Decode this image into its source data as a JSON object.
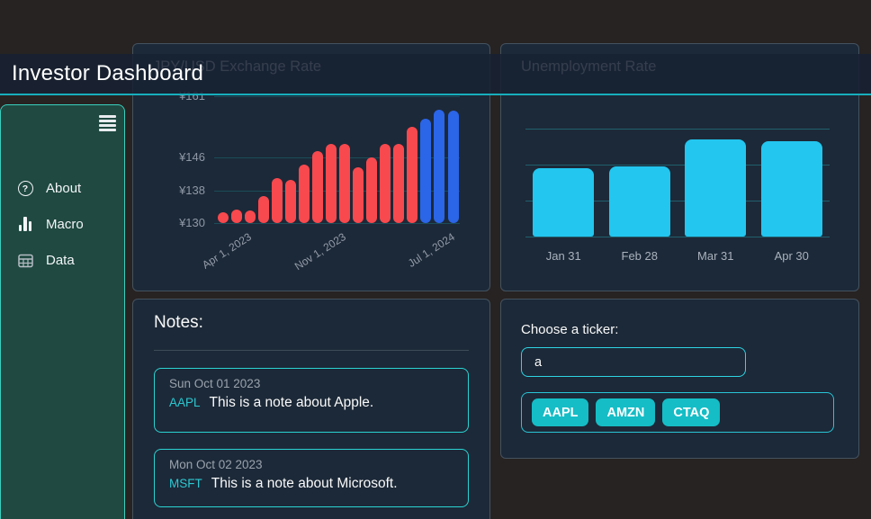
{
  "header": {
    "title": "Investor Dashboard"
  },
  "sidebar": {
    "menu_icon": "hamburger-icon",
    "items": [
      {
        "label": "About",
        "icon": "question-circle-icon"
      },
      {
        "label": "Macro",
        "icon": "bar-chart-icon"
      },
      {
        "label": "Data",
        "icon": "table-icon"
      }
    ]
  },
  "notes": {
    "heading": "Notes:",
    "items": [
      {
        "date": "Sun Oct 01 2023",
        "ticker": "AAPL",
        "text": "This is a note about Apple."
      },
      {
        "date": "Mon Oct 02 2023",
        "ticker": "MSFT",
        "text": "This is a note about Microsoft."
      }
    ]
  },
  "ticker_panel": {
    "label": "Choose a ticker:",
    "input_value": "a",
    "input_placeholder": "",
    "buttons": [
      "AAPL",
      "AMZN",
      "CTAQ"
    ]
  },
  "chart_data": [
    {
      "type": "bar",
      "title": "JPY/USD Exchange Rate",
      "values": [
        132.7,
        133.3,
        133.1,
        136.6,
        141.0,
        140.5,
        144.4,
        147.5,
        149.4,
        149.4,
        143.6,
        146.0,
        149.4,
        149.4,
        153.6,
        155.6,
        157.8,
        157.5
      ],
      "highlight_from_index": 15,
      "yticks": [
        {
          "label": "¥130",
          "value": 130
        },
        {
          "label": "¥138",
          "value": 138
        },
        {
          "label": "¥146",
          "value": 146
        },
        {
          "label": "¥161",
          "value": 161
        }
      ],
      "xticks": [
        {
          "label": "Apr 1, 2023",
          "index": 2
        },
        {
          "label": "Nov 1, 2023",
          "index": 9
        },
        {
          "label": "Jul 1, 2024",
          "index": 17
        }
      ],
      "ylim": [
        130,
        162.5
      ],
      "grid": true,
      "legend": "none",
      "colors": {
        "bar": "#f8494e",
        "bar_highlight": "#2b65e8",
        "grid": "#1b4c59"
      }
    },
    {
      "type": "bar",
      "title": "Unemployment Rate",
      "categories": [
        "Jan 31",
        "Feb 28",
        "Mar 31",
        "Apr 30"
      ],
      "values": [
        1.9,
        1.95,
        2.7,
        2.65
      ],
      "gridline_values": [
        0,
        1,
        2,
        3
      ],
      "ylim": [
        0,
        3.35
      ],
      "yticks_visible": false,
      "grid": true,
      "legend": "none",
      "colors": {
        "bar": "#23c6ef",
        "grid": "#21606e"
      }
    }
  ],
  "colors": {
    "page_bg": "#272322",
    "card_bg": "#1c2938",
    "card_border": "#44525f",
    "header_bg": "#172133",
    "header_accent": "#17aebc",
    "sidebar_bg": "#1f4941",
    "sidebar_border": "#39cfbf",
    "teal_accent": "#2bd3d3",
    "button_bg": "#15bdc6",
    "text_primary": "#fafafa",
    "text_muted": "#9aa3ad"
  }
}
